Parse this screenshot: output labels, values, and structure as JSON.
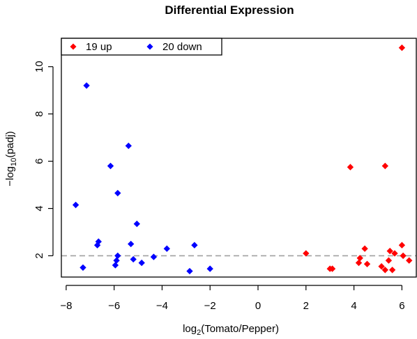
{
  "chart_data": {
    "type": "scatter",
    "title": "Differential Expression",
    "xlabel": {
      "prefix": "log",
      "sub": "2",
      "suffix": "(Tomato/Pepper)"
    },
    "ylabel": {
      "prefix": "−log",
      "sub": "10",
      "suffix": "(padj)"
    },
    "xlim": [
      -8.2,
      6.6
    ],
    "ylim": [
      1.1,
      11.2
    ],
    "xticks": [
      -8,
      -6,
      -4,
      -2,
      0,
      2,
      4,
      6
    ],
    "yticks": [
      2,
      4,
      6,
      8,
      10
    ],
    "xtick_labels": [
      "−8",
      "−6",
      "−4",
      "−2",
      "0",
      "2",
      "4",
      "6"
    ],
    "ytick_labels": [
      "2",
      "4",
      "6",
      "8",
      "10"
    ],
    "threshold": 2,
    "legend_position": "top-left",
    "series": [
      {
        "name": "19 up",
        "color": "#ff0000",
        "points": [
          [
            2.0,
            2.1
          ],
          [
            3.0,
            1.45
          ],
          [
            3.1,
            1.45
          ],
          [
            3.85,
            5.75
          ],
          [
            4.2,
            1.7
          ],
          [
            4.25,
            1.9
          ],
          [
            4.45,
            2.3
          ],
          [
            4.55,
            1.65
          ],
          [
            5.15,
            1.55
          ],
          [
            5.3,
            5.8
          ],
          [
            5.3,
            1.4
          ],
          [
            5.45,
            1.8
          ],
          [
            5.5,
            2.2
          ],
          [
            5.6,
            1.4
          ],
          [
            5.7,
            2.1
          ],
          [
            6.0,
            2.45
          ],
          [
            6.0,
            10.8
          ],
          [
            6.05,
            2.0
          ],
          [
            6.3,
            1.8
          ]
        ]
      },
      {
        "name": "20 down",
        "color": "#0000ff",
        "points": [
          [
            -7.6,
            4.15
          ],
          [
            -7.3,
            1.5
          ],
          [
            -7.15,
            9.2
          ],
          [
            -6.7,
            2.45
          ],
          [
            -6.65,
            2.6
          ],
          [
            -6.15,
            5.8
          ],
          [
            -5.95,
            1.6
          ],
          [
            -5.9,
            1.8
          ],
          [
            -5.85,
            4.65
          ],
          [
            -5.85,
            2.0
          ],
          [
            -5.4,
            6.65
          ],
          [
            -5.3,
            2.5
          ],
          [
            -5.2,
            1.85
          ],
          [
            -5.05,
            3.35
          ],
          [
            -4.85,
            1.7
          ],
          [
            -4.35,
            1.95
          ],
          [
            -3.8,
            2.3
          ],
          [
            -2.85,
            1.35
          ],
          [
            -2.65,
            2.45
          ],
          [
            -2.0,
            1.45
          ]
        ]
      }
    ]
  }
}
